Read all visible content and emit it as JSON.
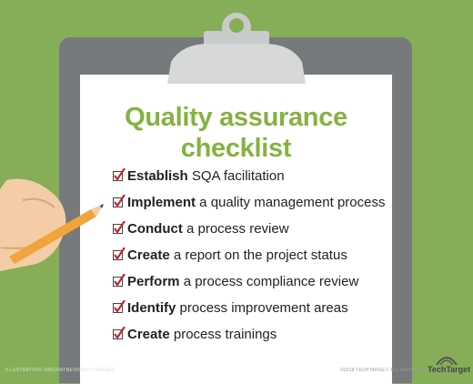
{
  "title_line1": "Quality assurance",
  "title_line2": "checklist",
  "items": [
    {
      "bold": "Establish",
      "rest": " SQA facilitation"
    },
    {
      "bold": "Implement",
      "rest": " a quality management process"
    },
    {
      "bold": "Conduct",
      "rest": " a process review"
    },
    {
      "bold": "Create",
      "rest": " a report on the project status"
    },
    {
      "bold": "Perform",
      "rest": " a process compliance review"
    },
    {
      "bold": "Identify",
      "rest": " process improvement areas"
    },
    {
      "bold": "Create",
      "rest": " process trainings"
    }
  ],
  "credit_left": "ILLUSTRATION: DRIGHATNEV/GETTY IMAGES",
  "credit_right": "©2018 TECHTARGET. ALL RIGHTS RESERVED.",
  "brand": "TechTarget",
  "colors": {
    "background": "#86ae58",
    "title": "#85b241",
    "check": "#c0262d",
    "board": "#777a7c"
  }
}
